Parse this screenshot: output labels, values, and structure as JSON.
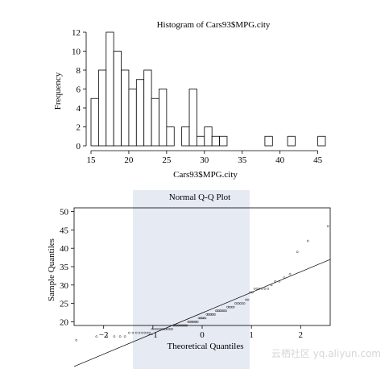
{
  "watermark": "云栖社区 yq.aliyun.com",
  "chart_data": [
    {
      "type": "bar",
      "title": "Histogram of Cars93$MPG.city",
      "xlabel": "Cars93$MPG.city",
      "ylabel": "Frequency",
      "bin_width": 1,
      "bins": [
        {
          "x0": 15,
          "count": 5
        },
        {
          "x0": 16,
          "count": 8
        },
        {
          "x0": 17,
          "count": 12
        },
        {
          "x0": 18,
          "count": 10
        },
        {
          "x0": 19,
          "count": 8
        },
        {
          "x0": 20,
          "count": 6
        },
        {
          "x0": 21,
          "count": 7
        },
        {
          "x0": 22,
          "count": 8
        },
        {
          "x0": 23,
          "count": 5
        },
        {
          "x0": 24,
          "count": 6
        },
        {
          "x0": 25,
          "count": 2
        },
        {
          "x0": 27,
          "count": 2
        },
        {
          "x0": 28,
          "count": 6
        },
        {
          "x0": 29,
          "count": 1
        },
        {
          "x0": 30,
          "count": 2
        },
        {
          "x0": 31,
          "count": 1
        },
        {
          "x0": 32,
          "count": 1
        },
        {
          "x0": 38,
          "count": 1
        },
        {
          "x0": 41,
          "count": 1
        },
        {
          "x0": 45,
          "count": 1
        }
      ],
      "xlim": [
        15,
        46
      ],
      "ylim": [
        0,
        12
      ],
      "xticks": [
        15,
        20,
        25,
        30,
        35,
        40,
        45
      ],
      "yticks": [
        0,
        2,
        4,
        6,
        8,
        10,
        12
      ],
      "grid": false
    },
    {
      "type": "scatter",
      "title": "Normal Q-Q Plot",
      "xlabel": "Theoretical Quantiles",
      "ylabel": "Sample Quantiles",
      "xlim": [
        -2.6,
        2.6
      ],
      "ylim": [
        19,
        51
      ],
      "xticks": [
        -2,
        -1,
        0,
        1,
        2
      ],
      "yticks": [
        20,
        25,
        30,
        35,
        40,
        45,
        50
      ],
      "grid": false,
      "counts": {
        "15": 1,
        "16": 5,
        "17": 8,
        "18": 12,
        "19": 10,
        "20": 8,
        "21": 6,
        "22": 7,
        "23": 8,
        "24": 5,
        "25": 6,
        "26": 2,
        "28": 2,
        "29": 6,
        "30": 1,
        "31": 2,
        "32": 1,
        "33": 1,
        "39": 1,
        "42": 1,
        "46": 1
      },
      "reference_line": {
        "slope": 5.6,
        "intercept": 22.4
      }
    }
  ]
}
